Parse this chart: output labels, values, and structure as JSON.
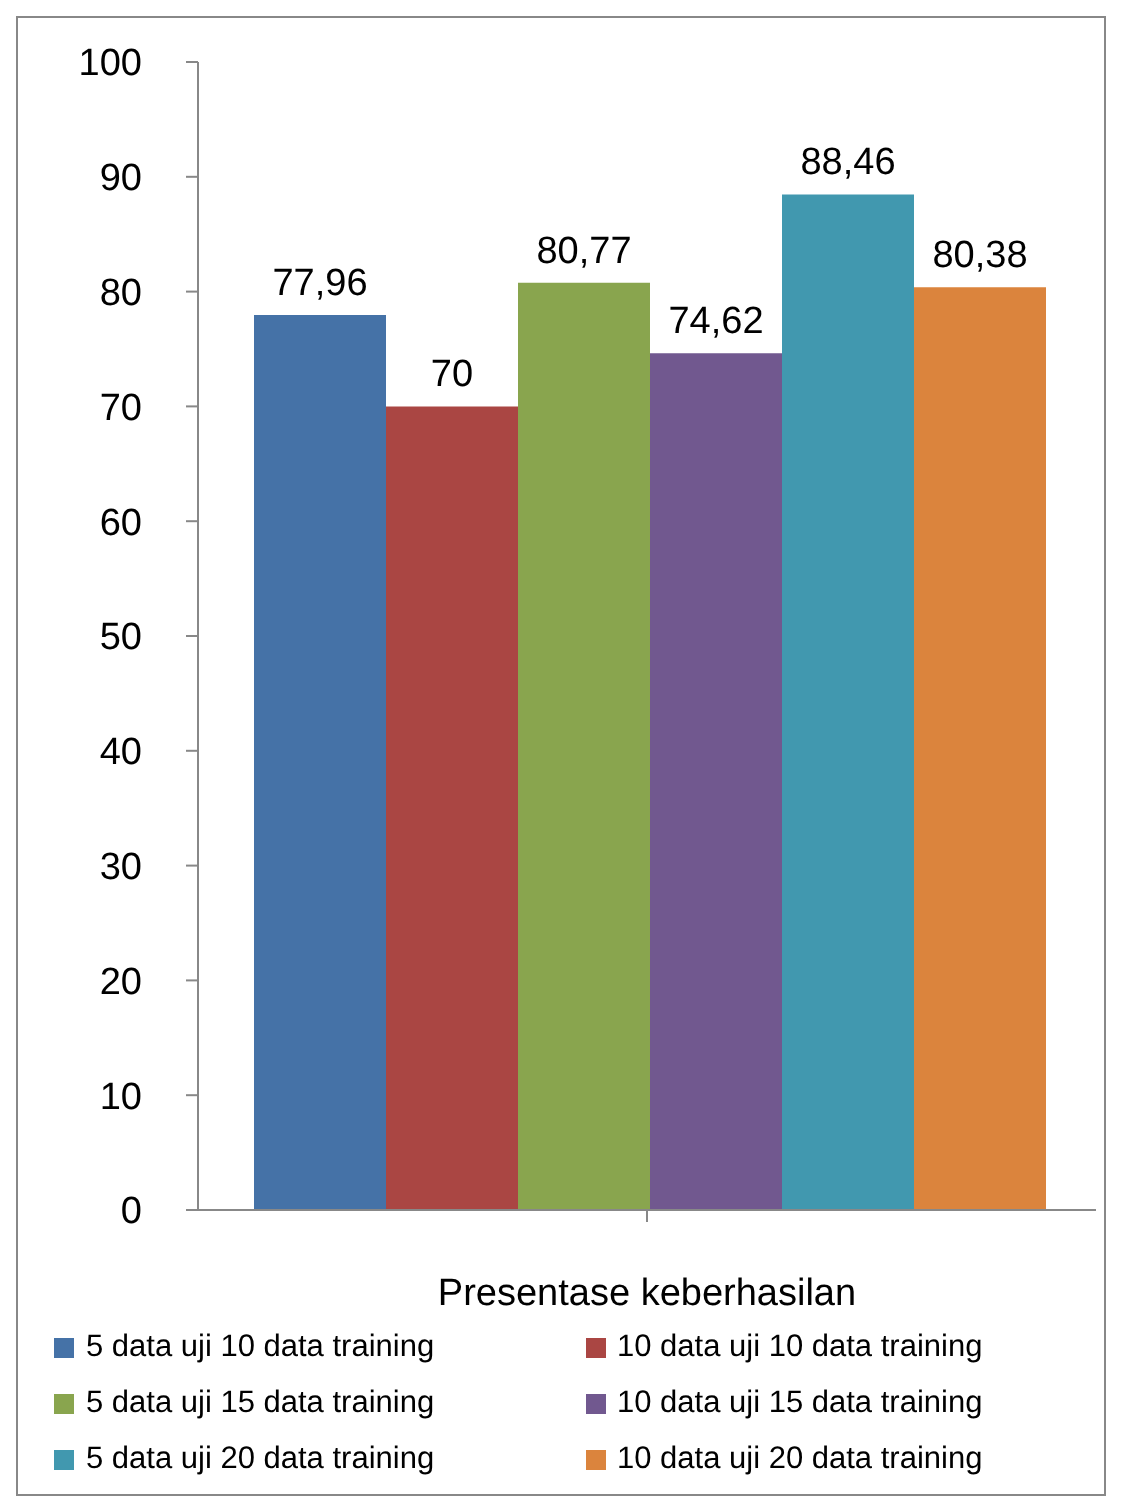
{
  "chart_data": {
    "type": "bar",
    "categories": [
      "Presentase keberhasilan"
    ],
    "series": [
      {
        "name": "5 data uji 10 data training",
        "color": "#4572a7",
        "values": [
          77.96
        ],
        "value_labels": [
          "77,96"
        ]
      },
      {
        "name": "10 data uji 10 data training",
        "color": "#aa4643",
        "values": [
          70
        ],
        "value_labels": [
          "70"
        ]
      },
      {
        "name": "5 data uji 15 data training",
        "color": "#89a54e",
        "values": [
          80.77
        ],
        "value_labels": [
          "80,77"
        ]
      },
      {
        "name": "10 data uji 15 data training",
        "color": "#71588f",
        "values": [
          74.62
        ],
        "value_labels": [
          "74,62"
        ]
      },
      {
        "name": "5 data uji 20 data training",
        "color": "#4198af",
        "values": [
          88.46
        ],
        "value_labels": [
          "88,46"
        ]
      },
      {
        "name": "10 data uji 20 data training",
        "color": "#db843d",
        "values": [
          80.38
        ],
        "value_labels": [
          "80,38"
        ]
      }
    ],
    "ylim": [
      0,
      100
    ],
    "yticks": [
      0,
      10,
      20,
      30,
      40,
      50,
      60,
      70,
      80,
      90,
      100
    ],
    "grid": false,
    "legend": "bottom"
  }
}
